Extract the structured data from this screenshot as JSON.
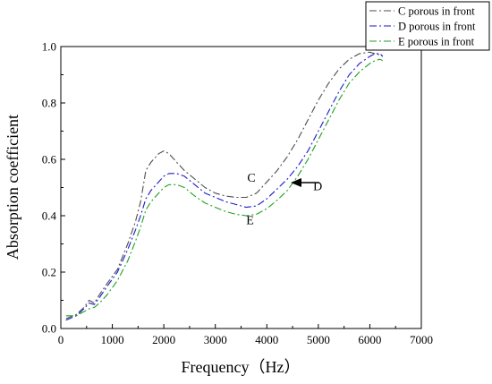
{
  "chart_data": {
    "type": "line",
    "xlabel": "Frequency（Hz）",
    "ylabel": "Absorption coefficient",
    "xlim": [
      0,
      7000
    ],
    "ylim": [
      0.0,
      1.0
    ],
    "xticks": [
      "0",
      "1000",
      "2000",
      "3000",
      "4000",
      "5000",
      "6000",
      "7000"
    ],
    "yticks": [
      "0.0",
      "0.2",
      "0.4",
      "0.6",
      "0.8",
      "1.0"
    ],
    "grid": false,
    "legend_position": "top-right",
    "series": [
      {
        "name": "C porous in front",
        "color": "#4d4d4d",
        "dash": "8,3,2,3",
        "x": [
          100,
          300,
          450,
          550,
          650,
          750,
          900,
          1100,
          1300,
          1450,
          1550,
          1650,
          1750,
          1900,
          2000,
          2100,
          2250,
          2400,
          2600,
          2800,
          3000,
          3200,
          3400,
          3600,
          3800,
          4000,
          4200,
          4400,
          4600,
          4800,
          5000,
          5200,
          5400,
          5600,
          5800,
          6000,
          6100,
          6200,
          6250
        ],
        "y": [
          0.035,
          0.05,
          0.075,
          0.1,
          0.09,
          0.12,
          0.16,
          0.21,
          0.3,
          0.38,
          0.45,
          0.56,
          0.59,
          0.62,
          0.63,
          0.62,
          0.59,
          0.56,
          0.53,
          0.5,
          0.48,
          0.47,
          0.465,
          0.465,
          0.48,
          0.52,
          0.56,
          0.61,
          0.67,
          0.74,
          0.81,
          0.87,
          0.92,
          0.955,
          0.975,
          0.98,
          0.975,
          0.97,
          0.965
        ]
      },
      {
        "name": "D porous in front",
        "color": "#1a1acc",
        "dash": "8,3,2,3",
        "x": [
          100,
          300,
          450,
          550,
          650,
          750,
          900,
          1100,
          1300,
          1450,
          1550,
          1650,
          1750,
          1900,
          2000,
          2100,
          2250,
          2400,
          2600,
          2800,
          3000,
          3200,
          3400,
          3600,
          3800,
          4000,
          4200,
          4400,
          4600,
          4800,
          5000,
          5200,
          5400,
          5600,
          5800,
          6000,
          6100,
          6200,
          6250
        ],
        "y": [
          0.03,
          0.045,
          0.07,
          0.09,
          0.085,
          0.11,
          0.15,
          0.2,
          0.28,
          0.35,
          0.4,
          0.46,
          0.49,
          0.52,
          0.54,
          0.55,
          0.55,
          0.54,
          0.51,
          0.48,
          0.465,
          0.45,
          0.44,
          0.43,
          0.435,
          0.46,
          0.495,
          0.53,
          0.575,
          0.63,
          0.7,
          0.77,
          0.84,
          0.9,
          0.94,
          0.965,
          0.975,
          0.975,
          0.965
        ]
      },
      {
        "name": "E porous in front",
        "color": "#1f9f1f",
        "dash": "8,3,2,3",
        "x": [
          100,
          300,
          450,
          550,
          650,
          750,
          900,
          1100,
          1300,
          1450,
          1550,
          1650,
          1750,
          1900,
          2000,
          2100,
          2250,
          2400,
          2600,
          2800,
          3000,
          3200,
          3400,
          3600,
          3800,
          4000,
          4200,
          4400,
          4600,
          4800,
          5000,
          5200,
          5400,
          5600,
          5800,
          6000,
          6100,
          6200,
          6250
        ],
        "y": [
          0.045,
          0.045,
          0.06,
          0.07,
          0.075,
          0.09,
          0.12,
          0.17,
          0.24,
          0.31,
          0.36,
          0.42,
          0.45,
          0.48,
          0.5,
          0.51,
          0.51,
          0.5,
          0.47,
          0.445,
          0.43,
          0.415,
          0.405,
          0.4,
          0.405,
          0.425,
          0.455,
          0.49,
          0.54,
          0.6,
          0.67,
          0.74,
          0.81,
          0.87,
          0.91,
          0.94,
          0.95,
          0.955,
          0.95
        ]
      }
    ],
    "annotations": [
      {
        "text": "C",
        "x": 3620,
        "y": 0.52
      },
      {
        "text": "D",
        "x": 4900,
        "y": 0.49
      },
      {
        "text": "E",
        "x": 3600,
        "y": 0.37
      }
    ]
  }
}
